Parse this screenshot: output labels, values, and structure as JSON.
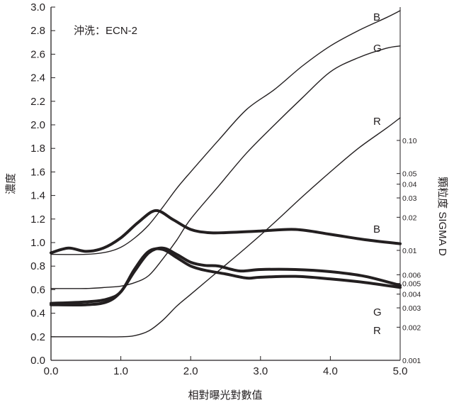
{
  "chart_data": {
    "type": "line",
    "annotation": "沖洗：ECN-2",
    "xlabel": "相對曝光對數值",
    "ylabel": "濃度",
    "y2label": "顆粒度 SIGMA D",
    "xlim": [
      0.0,
      5.0
    ],
    "ylim": [
      0.0,
      3.0
    ],
    "y2lim": [
      0.001,
      0.2
    ],
    "y2scale": "log",
    "xticks": [
      "0.0",
      "1.0",
      "2.0",
      "3.0",
      "4.0",
      "5.0"
    ],
    "yticks": [
      "0.0",
      "0.2",
      "0.4",
      "0.6",
      "0.8",
      "1.0",
      "1.2",
      "1.4",
      "1.6",
      "1.8",
      "2.0",
      "2.2",
      "2.4",
      "2.6",
      "2.8",
      "3.0"
    ],
    "y2ticks": [
      "0.001",
      "0.002",
      "0.003",
      "0.004",
      "0.005",
      "0.006",
      "0.01",
      "0.02",
      "0.03",
      "0.04",
      "0.05",
      "0.10"
    ],
    "series": [
      {
        "name": "B",
        "axis": "density",
        "style": "thin",
        "x": [
          0.0,
          0.5,
          0.8,
          1.0,
          1.2,
          1.4,
          1.6,
          1.8,
          2.0,
          2.4,
          2.8,
          3.2,
          3.6,
          4.0,
          4.4,
          4.8,
          5.0
        ],
        "y": [
          0.9,
          0.9,
          0.92,
          0.96,
          1.04,
          1.15,
          1.3,
          1.46,
          1.6,
          1.87,
          2.13,
          2.3,
          2.5,
          2.67,
          2.8,
          2.91,
          2.97
        ]
      },
      {
        "name": "G",
        "axis": "density",
        "style": "thin",
        "x": [
          0.0,
          0.5,
          0.8,
          1.0,
          1.2,
          1.4,
          1.6,
          1.8,
          2.0,
          2.4,
          2.8,
          3.2,
          3.6,
          4.0,
          4.4,
          4.8,
          5.0
        ],
        "y": [
          0.61,
          0.61,
          0.62,
          0.63,
          0.66,
          0.72,
          0.86,
          1.02,
          1.2,
          1.48,
          1.76,
          2.0,
          2.23,
          2.45,
          2.57,
          2.65,
          2.67
        ]
      },
      {
        "name": "R",
        "axis": "density",
        "style": "thin",
        "x": [
          0.0,
          0.5,
          1.0,
          1.2,
          1.4,
          1.6,
          1.8,
          2.0,
          2.4,
          2.8,
          3.2,
          3.6,
          4.0,
          4.4,
          4.8,
          5.0
        ],
        "y": [
          0.2,
          0.2,
          0.2,
          0.21,
          0.25,
          0.34,
          0.46,
          0.56,
          0.76,
          0.96,
          1.17,
          1.39,
          1.6,
          1.8,
          1.97,
          2.06
        ]
      },
      {
        "name": "B",
        "axis": "granularity",
        "style": "thick",
        "x": [
          0.0,
          0.25,
          0.5,
          0.75,
          1.0,
          1.25,
          1.5,
          1.75,
          2.0,
          2.25,
          2.5,
          3.0,
          3.5,
          4.0,
          4.5,
          5.0
        ],
        "y": [
          0.0095,
          0.0105,
          0.0098,
          0.0105,
          0.013,
          0.018,
          0.023,
          0.019,
          0.0155,
          0.0145,
          0.0145,
          0.015,
          0.0155,
          0.014,
          0.0125,
          0.0115
        ]
      },
      {
        "name": "G",
        "axis": "granularity",
        "style": "thick",
        "x": [
          0.0,
          0.5,
          0.8,
          1.0,
          1.2,
          1.4,
          1.6,
          1.8,
          2.0,
          2.2,
          2.4,
          2.7,
          3.0,
          3.5,
          4.0,
          4.5,
          5.0
        ],
        "y": [
          0.0032,
          0.0032,
          0.0034,
          0.0042,
          0.0065,
          0.0095,
          0.0105,
          0.0092,
          0.0078,
          0.0073,
          0.0072,
          0.0065,
          0.0067,
          0.0067,
          0.0064,
          0.0058,
          0.0048
        ]
      },
      {
        "name": "R",
        "axis": "granularity",
        "style": "thick",
        "x": [
          0.0,
          0.5,
          0.8,
          1.0,
          1.2,
          1.4,
          1.6,
          1.8,
          2.0,
          2.2,
          2.5,
          2.8,
          3.0,
          3.5,
          4.0,
          4.5,
          5.0
        ],
        "y": [
          0.0033,
          0.0034,
          0.0036,
          0.0042,
          0.0068,
          0.0098,
          0.0102,
          0.0086,
          0.0072,
          0.0066,
          0.0061,
          0.0056,
          0.0057,
          0.0058,
          0.0055,
          0.0051,
          0.0046
        ]
      }
    ]
  }
}
